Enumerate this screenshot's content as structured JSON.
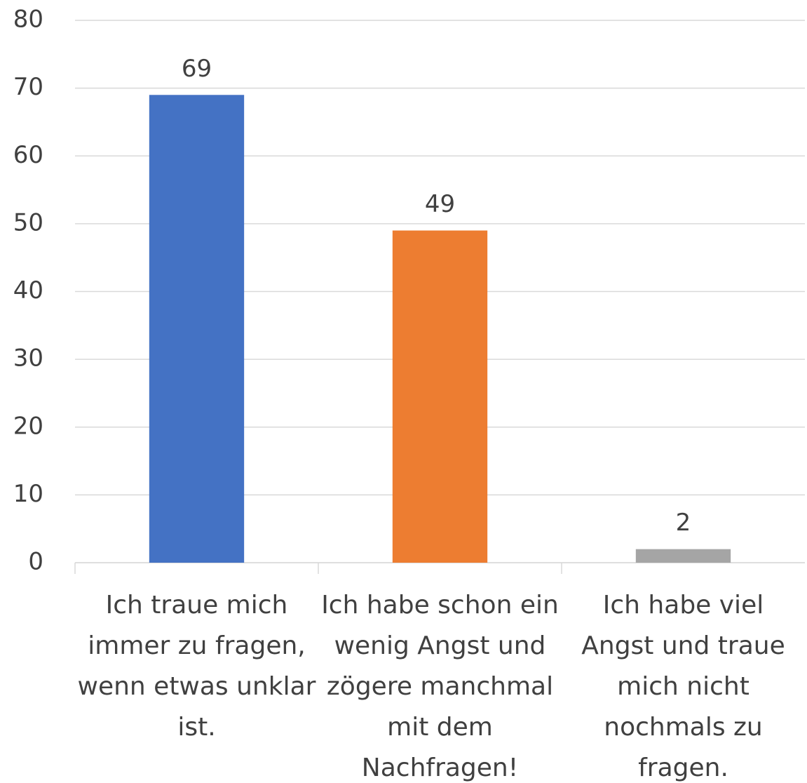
{
  "chart_data": {
    "type": "bar",
    "categories": [
      "Ich traue mich immer zu fragen, wenn etwas unklar ist.",
      "Ich habe schon ein wenig Angst und zögere manchmal mit dem Nachfragen!",
      "Ich habe viel Angst und traue mich nicht nochmals zu fragen."
    ],
    "values": [
      69,
      49,
      2
    ],
    "colors": [
      "#4472c4",
      "#ed7d31",
      "#a5a5a5"
    ],
    "ylim": [
      0,
      80
    ],
    "yticks": [
      0,
      10,
      20,
      30,
      40,
      50,
      60,
      70,
      80
    ],
    "grid": true
  }
}
